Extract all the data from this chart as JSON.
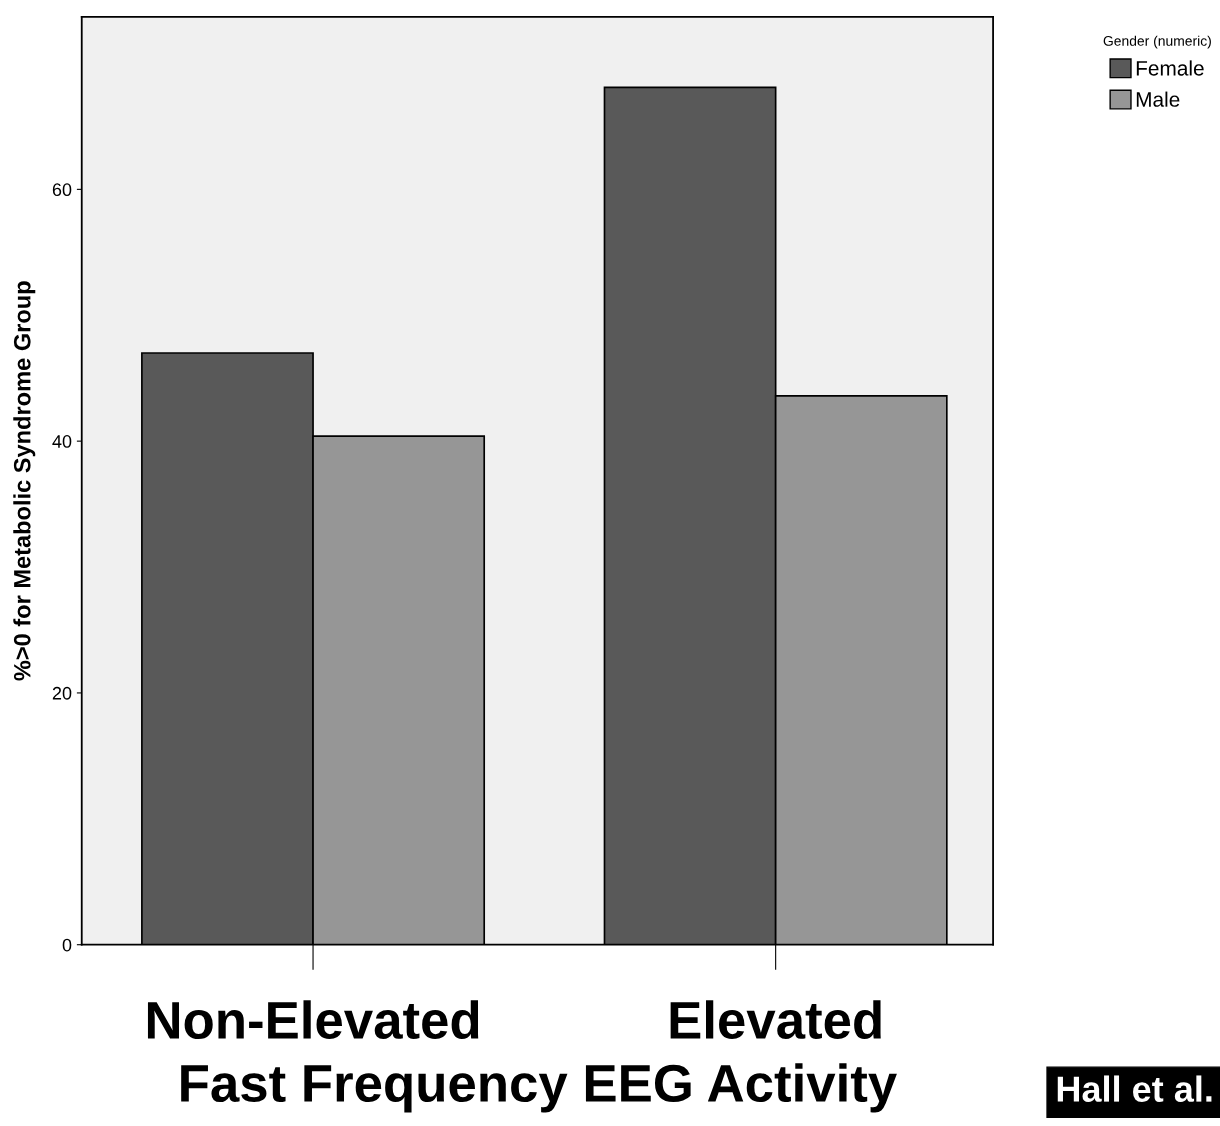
{
  "chart_data": {
    "type": "bar",
    "ylabel": "%>0 for Metabolic Syndrome Group",
    "xlabel": "Fast Frequency EEG Activity",
    "legend_title": "Gender (numeric)",
    "categories": [
      "Non-Elevated",
      "Elevated"
    ],
    "series": [
      {
        "name": "Female",
        "color": "#595959",
        "values": [
          47.0,
          68.1
        ]
      },
      {
        "name": "Male",
        "color": "#969696",
        "values": [
          40.4,
          43.6
        ]
      }
    ],
    "ylim": [
      0,
      73.7
    ],
    "yticks": [
      0,
      20,
      40,
      60
    ],
    "grid": false,
    "legend": "top right",
    "annotations": [
      "Hall et al."
    ]
  }
}
